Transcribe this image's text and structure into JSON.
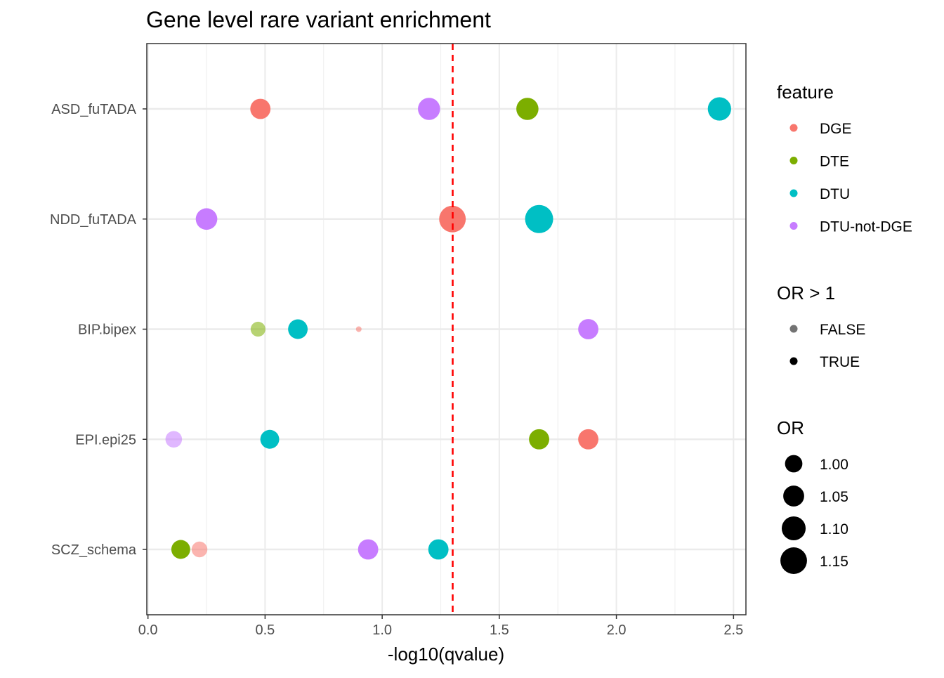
{
  "chart_data": {
    "type": "scatter",
    "title": "Gene level rare variant enrichment",
    "xlabel": "-log10(qvalue)",
    "ylabel": "",
    "xlim": [
      0,
      2.56
    ],
    "xticks": [
      0.0,
      0.5,
      1.0,
      1.5,
      2.0,
      2.5
    ],
    "xtick_labels": [
      "0.0",
      "0.5",
      "1.0",
      "1.5",
      "2.0",
      "2.5"
    ],
    "categories": [
      "ASD_fuTADA",
      "NDD_fuTADA",
      "BIP.bipex",
      "EPI.epi25",
      "SCZ_schema"
    ],
    "grid": true,
    "reference_line": {
      "x": 1.301,
      "color": "#ff0000",
      "style": "dashed"
    },
    "feature_colors": {
      "DGE": "#F8766D",
      "DTE": "#7CAE00",
      "DTU": "#00BFC4",
      "DTU-not-DGE": "#C77CFF"
    },
    "points": [
      {
        "category": "ASD_fuTADA",
        "feature": "DGE",
        "x": 0.48,
        "or": 1.04,
        "or_gt_1": true
      },
      {
        "category": "ASD_fuTADA",
        "feature": "DTU-not-DGE",
        "x": 1.2,
        "or": 1.07,
        "or_gt_1": true
      },
      {
        "category": "ASD_fuTADA",
        "feature": "DTE",
        "x": 1.62,
        "or": 1.07,
        "or_gt_1": true
      },
      {
        "category": "ASD_fuTADA",
        "feature": "DTU",
        "x": 2.44,
        "or": 1.09,
        "or_gt_1": true
      },
      {
        "category": "NDD_fuTADA",
        "feature": "DTU-not-DGE",
        "x": 0.25,
        "or": 1.06,
        "or_gt_1": true
      },
      {
        "category": "NDD_fuTADA",
        "feature": "DGE",
        "x": 1.3,
        "or": 1.15,
        "or_gt_1": true
      },
      {
        "category": "NDD_fuTADA",
        "feature": "DTU",
        "x": 1.67,
        "or": 1.18,
        "or_gt_1": true
      },
      {
        "category": "BIP.bipex",
        "feature": "DTE",
        "x": 0.47,
        "or": 0.97,
        "or_gt_1": false
      },
      {
        "category": "BIP.bipex",
        "feature": "DTU",
        "x": 0.64,
        "or": 1.03,
        "or_gt_1": true
      },
      {
        "category": "BIP.bipex",
        "feature": "DGE",
        "x": 0.9,
        "or": 0.9,
        "or_gt_1": false
      },
      {
        "category": "BIP.bipex",
        "feature": "DTU-not-DGE",
        "x": 1.88,
        "or": 1.04,
        "or_gt_1": true
      },
      {
        "category": "EPI.epi25",
        "feature": "DTU-not-DGE",
        "x": 0.11,
        "or": 0.99,
        "or_gt_1": false
      },
      {
        "category": "EPI.epi25",
        "feature": "DTU",
        "x": 0.52,
        "or": 1.02,
        "or_gt_1": true
      },
      {
        "category": "EPI.epi25",
        "feature": "DTE",
        "x": 1.67,
        "or": 1.04,
        "or_gt_1": true
      },
      {
        "category": "EPI.epi25",
        "feature": "DGE",
        "x": 1.88,
        "or": 1.04,
        "or_gt_1": true
      },
      {
        "category": "SCZ_schema",
        "feature": "DTE",
        "x": 0.14,
        "or": 1.02,
        "or_gt_1": true
      },
      {
        "category": "SCZ_schema",
        "feature": "DGE",
        "x": 0.22,
        "or": 0.98,
        "or_gt_1": false
      },
      {
        "category": "SCZ_schema",
        "feature": "DTU-not-DGE",
        "x": 0.94,
        "or": 1.04,
        "or_gt_1": true
      },
      {
        "category": "SCZ_schema",
        "feature": "DTU",
        "x": 1.24,
        "or": 1.04,
        "or_gt_1": true
      }
    ],
    "alpha": {
      "FALSE": 0.55,
      "TRUE": 1.0
    },
    "or_size_range": [
      0.9,
      1.18
    ],
    "legend": {
      "placement": "right",
      "feature": {
        "title": "feature",
        "entries": [
          "DGE",
          "DTE",
          "DTU",
          "DTU-not-DGE"
        ]
      },
      "or_gt_1": {
        "title": "OR > 1",
        "entries": [
          "FALSE",
          "TRUE"
        ]
      },
      "or": {
        "title": "OR",
        "entries": [
          "1.00",
          "1.05",
          "1.10",
          "1.15"
        ],
        "values": [
          1.0,
          1.05,
          1.1,
          1.15
        ]
      }
    }
  }
}
